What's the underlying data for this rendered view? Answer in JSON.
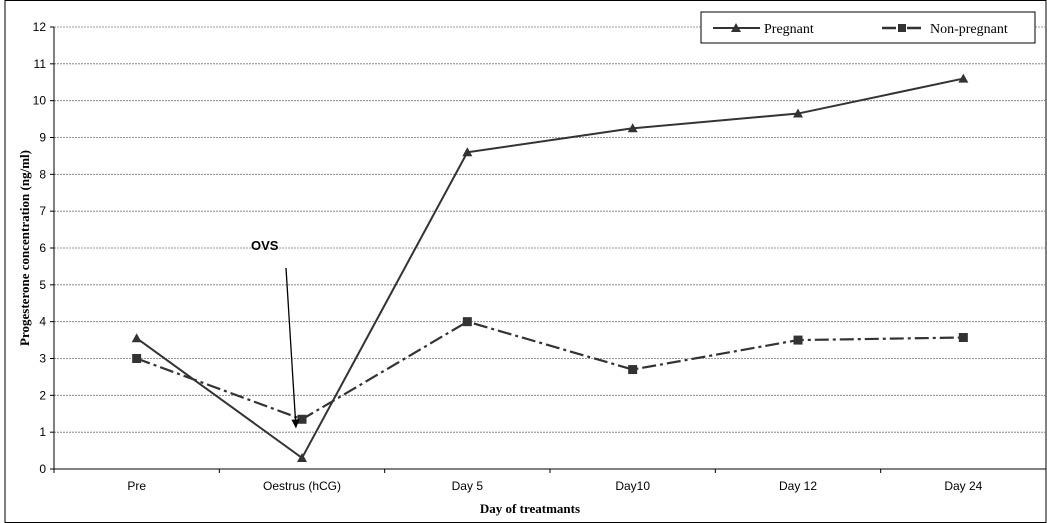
{
  "chart_data": {
    "type": "line",
    "title": "",
    "xlabel": "Day of treatmants",
    "ylabel": "Progesterone concentration (ng/ml)",
    "categories": [
      "Pre",
      "Oestrus (hCG)",
      "Day 5",
      "Day10",
      "Day 12",
      "Day 24"
    ],
    "ylim": [
      0,
      12
    ],
    "yticks": [
      "0",
      "1",
      "2",
      "3",
      "4",
      "5",
      "6",
      "7",
      "8",
      "9",
      "10",
      "11",
      "12"
    ],
    "grid": true,
    "legend_position": "top-right",
    "series": [
      {
        "name": "Pregnant",
        "marker": "triangle",
        "line_style": "solid",
        "color": "#333333",
        "values": [
          3.55,
          0.3,
          8.6,
          9.25,
          9.65,
          10.6
        ]
      },
      {
        "name": "Non-pregnant",
        "marker": "square",
        "line_style": "dash-dot",
        "color": "#333333",
        "values": [
          3.0,
          1.35,
          4.0,
          2.7,
          3.5,
          3.57
        ]
      }
    ],
    "annotations": [
      {
        "text": "OVS",
        "points_to_category": "Oestrus (hCG)",
        "points_to_value": 1.1
      }
    ]
  }
}
